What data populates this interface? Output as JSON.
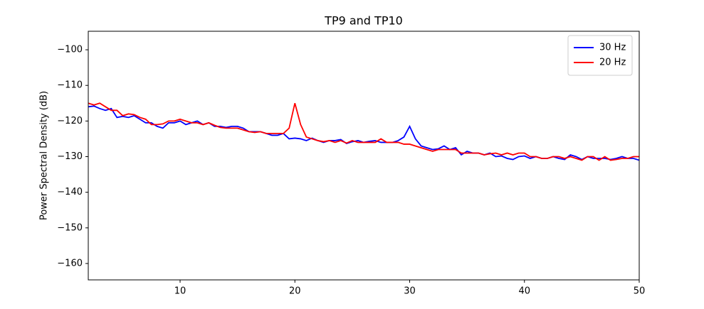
{
  "chart_data": {
    "type": "line",
    "title": "TP9 and TP10",
    "ylabel": "Power Spectral Density (dB)",
    "x": [
      2,
      2.5,
      3,
      3.5,
      4,
      4.5,
      5,
      5.5,
      6,
      6.5,
      7,
      7.5,
      8,
      8.5,
      9,
      9.5,
      10,
      10.5,
      11,
      11.5,
      12,
      12.5,
      13,
      13.5,
      14,
      14.5,
      15,
      15.5,
      16,
      16.5,
      17,
      17.5,
      18,
      18.5,
      19,
      19.5,
      20,
      20.5,
      21,
      21.5,
      22,
      22.5,
      23,
      23.5,
      24,
      24.5,
      25,
      25.5,
      26,
      26.5,
      27,
      27.5,
      28,
      28.5,
      29,
      29.5,
      30,
      30.5,
      31,
      31.5,
      32,
      32.5,
      33,
      33.5,
      34,
      34.5,
      35,
      35.5,
      36,
      36.5,
      37,
      37.5,
      38,
      38.5,
      39,
      39.5,
      40,
      40.5,
      41,
      41.5,
      42,
      42.5,
      43,
      43.5,
      44,
      44.5,
      45,
      45.5,
      46,
      46.5,
      47,
      47.5,
      48,
      48.5,
      49,
      49.5,
      50
    ],
    "series": [
      {
        "name": "30 Hz",
        "color": "#0000ff",
        "values": [
          -116,
          -115.8,
          -116.5,
          -117,
          -116.5,
          -119,
          -118.7,
          -119,
          -118.5,
          -119.5,
          -120.5,
          -120.5,
          -121.5,
          -122,
          -120.5,
          -120.5,
          -120,
          -121,
          -120.5,
          -120,
          -121,
          -120.5,
          -121.5,
          -121.5,
          -121.8,
          -121.5,
          -121.5,
          -122,
          -123,
          -123,
          -123,
          -123.5,
          -124,
          -124,
          -123.5,
          -125,
          -124.8,
          -125,
          -125.5,
          -124.8,
          -125.5,
          -126,
          -125.5,
          -125.5,
          -125.2,
          -126.3,
          -125.8,
          -125.5,
          -126,
          -125.7,
          -125.5,
          -126,
          -126,
          -126,
          -125.5,
          -124.5,
          -121.5,
          -125,
          -127,
          -127.5,
          -128,
          -127.8,
          -127,
          -128,
          -127.5,
          -129.5,
          -128.5,
          -129,
          -129,
          -129.5,
          -129,
          -130,
          -129.8,
          -130.5,
          -130.8,
          -130,
          -129.8,
          -130.5,
          -130,
          -130.5,
          -130.5,
          -130,
          -130.5,
          -130.8,
          -129.5,
          -130,
          -130.8,
          -130,
          -130.5,
          -130.5,
          -130.5,
          -130.8,
          -130.5,
          -130,
          -130.5,
          -130.5,
          -131
        ]
      },
      {
        "name": "20 Hz",
        "color": "#ff0000",
        "values": [
          -115,
          -115.5,
          -115,
          -116,
          -117,
          -117,
          -118.5,
          -118,
          -118.2,
          -119,
          -119.5,
          -121,
          -121,
          -120.8,
          -120,
          -120,
          -119.5,
          -120,
          -120.5,
          -120.5,
          -121,
          -120.5,
          -121.2,
          -121.8,
          -122,
          -122,
          -122,
          -122.5,
          -123,
          -123.2,
          -123,
          -123.5,
          -123.5,
          -123.5,
          -123.5,
          -122,
          -115,
          -121,
          -124.5,
          -125,
          -125.5,
          -125.8,
          -125.5,
          -126,
          -125.5,
          -126.2,
          -125.5,
          -126,
          -126,
          -126,
          -126,
          -125,
          -126,
          -126,
          -126,
          -126.5,
          -126.5,
          -127,
          -127.5,
          -128,
          -128.5,
          -128,
          -128,
          -128,
          -128,
          -129,
          -129,
          -129,
          -129,
          -129.5,
          -129.2,
          -129,
          -129.5,
          -129,
          -129.5,
          -129,
          -129,
          -130,
          -130,
          -130.5,
          -130.5,
          -130,
          -130,
          -130.5,
          -130,
          -130.5,
          -131,
          -130,
          -130,
          -131,
          -130,
          -131,
          -130.8,
          -130.5,
          -130.5,
          -130,
          -130
        ]
      }
    ],
    "xlim": [
      2,
      50
    ],
    "ylim": [
      -164.6,
      -94.8
    ],
    "xticks": [
      10,
      20,
      30,
      40,
      50
    ],
    "yticks": [
      {
        "value": -100,
        "label": "−100"
      },
      {
        "value": -110,
        "label": "−110"
      },
      {
        "value": -120,
        "label": "−120"
      },
      {
        "value": -130,
        "label": "−130"
      },
      {
        "value": -140,
        "label": "−140"
      },
      {
        "value": -150,
        "label": "−150"
      },
      {
        "value": -160,
        "label": "−160"
      }
    ],
    "legend": "upper right"
  }
}
